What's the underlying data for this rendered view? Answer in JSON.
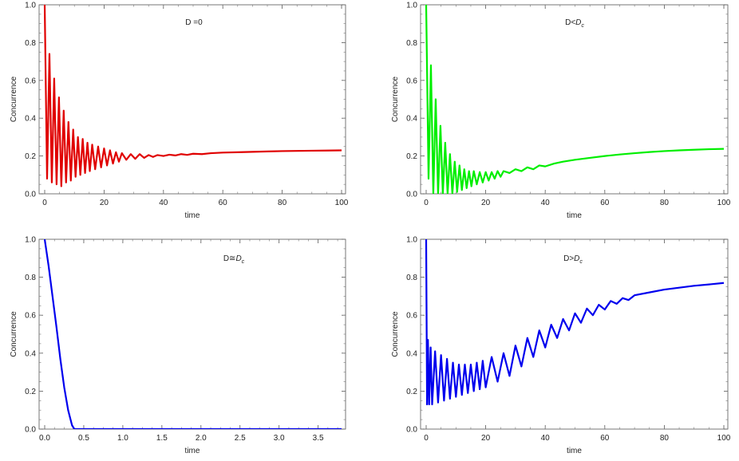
{
  "chart_data": [
    {
      "type": "line",
      "annotation_html": "D =0",
      "annotation": "D =0",
      "xlabel": "time",
      "ylabel": "Concurrence",
      "xlim": [
        0,
        100
      ],
      "ylim": [
        0,
        1.0
      ],
      "xticks": [
        "0",
        "20",
        "40",
        "60",
        "80",
        "100"
      ],
      "yticks": [
        "0.0",
        "0.2",
        "0.4",
        "0.6",
        "0.8",
        "1.0"
      ],
      "color": "#e00000",
      "series": [
        {
          "x": [
            0,
            0.8,
            1.6,
            2.4,
            3.2,
            4.0,
            4.8,
            5.6,
            6.4,
            7.2,
            8.0,
            8.8,
            9.6,
            10.4,
            11.2,
            12.0,
            12.8,
            13.6,
            14.4,
            15.2,
            16.0,
            17.0,
            18.0,
            19.0,
            20.0,
            21.0,
            22.0,
            23.0,
            24.0,
            25.0,
            26.0,
            27.5,
            29.0,
            30.5,
            32.0,
            33.5,
            35.0,
            36.5,
            38.0,
            40.0,
            42.0,
            44.0,
            46.0,
            48.0,
            50.0,
            53.0,
            56.0,
            60.0,
            65.0,
            70.0,
            75.0,
            80.0,
            85.0,
            90.0,
            95.0,
            100.0
          ],
          "y": [
            1.0,
            0.08,
            0.74,
            0.06,
            0.61,
            0.05,
            0.51,
            0.04,
            0.44,
            0.06,
            0.38,
            0.07,
            0.34,
            0.09,
            0.3,
            0.1,
            0.29,
            0.11,
            0.27,
            0.12,
            0.26,
            0.13,
            0.25,
            0.14,
            0.24,
            0.15,
            0.23,
            0.16,
            0.22,
            0.17,
            0.215,
            0.18,
            0.21,
            0.185,
            0.21,
            0.19,
            0.205,
            0.195,
            0.205,
            0.2,
            0.207,
            0.203,
            0.21,
            0.206,
            0.212,
            0.21,
            0.215,
            0.218,
            0.22,
            0.222,
            0.224,
            0.226,
            0.227,
            0.228,
            0.229,
            0.23
          ]
        }
      ]
    },
    {
      "type": "line",
      "annotation": "D<Dc",
      "annotation_main": "D<",
      "annotation_sub": "c",
      "annotation_italic": "D",
      "xlabel": "time",
      "ylabel": "Concurrence",
      "xlim": [
        0,
        100
      ],
      "ylim": [
        0,
        1.0
      ],
      "xticks": [
        "0",
        "20",
        "40",
        "60",
        "80",
        "100"
      ],
      "yticks": [
        "0.0",
        "0.2",
        "0.4",
        "0.6",
        "0.8",
        "1.0"
      ],
      "color": "#00ee00",
      "series": [
        {
          "x": [
            0,
            0.8,
            1.6,
            2.4,
            3.2,
            4.0,
            4.8,
            5.6,
            6.4,
            7.2,
            8.0,
            8.8,
            9.6,
            10.4,
            11.2,
            12.0,
            12.8,
            13.6,
            14.4,
            15.2,
            16.0,
            17.0,
            18.0,
            19.0,
            20.0,
            21.0,
            22.0,
            23.0,
            24.0,
            25.0,
            26.0,
            28.0,
            30.0,
            32.0,
            34.0,
            36.0,
            38.0,
            40.0,
            43.0,
            46.0,
            50.0,
            55.0,
            60.0,
            65.0,
            70.0,
            75.0,
            80.0,
            85.0,
            90.0,
            95.0,
            100.0
          ],
          "y": [
            1.0,
            0.08,
            0.68,
            0.0,
            0.5,
            0.0,
            0.36,
            0.0,
            0.27,
            0.0,
            0.21,
            0.0,
            0.17,
            0.01,
            0.15,
            0.02,
            0.13,
            0.03,
            0.12,
            0.04,
            0.12,
            0.05,
            0.115,
            0.06,
            0.115,
            0.07,
            0.115,
            0.08,
            0.12,
            0.09,
            0.12,
            0.11,
            0.13,
            0.12,
            0.14,
            0.13,
            0.15,
            0.145,
            0.16,
            0.17,
            0.18,
            0.19,
            0.2,
            0.208,
            0.215,
            0.221,
            0.226,
            0.23,
            0.233,
            0.236,
            0.238
          ]
        }
      ]
    },
    {
      "type": "line",
      "annotation": "D≅Dc",
      "annotation_main": "D≅",
      "annotation_sub": "c",
      "annotation_italic": "D",
      "xlabel": "time",
      "ylabel": "Concurrence",
      "xlim": [
        0,
        3.8
      ],
      "ylim": [
        0,
        1.0
      ],
      "xtick_values": [
        0,
        0.5,
        1.0,
        1.5,
        2.0,
        2.5,
        3.0,
        3.5
      ],
      "xticks": [
        "0.0",
        "0.5",
        "1.0",
        "1.5",
        "2.0",
        "2.5",
        "3.0",
        "3.5"
      ],
      "yticks": [
        "0.0",
        "0.2",
        "0.4",
        "0.6",
        "0.8",
        "1.0"
      ],
      "color": "#0000ee",
      "series": [
        {
          "x": [
            0,
            0.05,
            0.1,
            0.15,
            0.2,
            0.25,
            0.3,
            0.35,
            0.38,
            0.4,
            1.0,
            2.0,
            3.0,
            3.8
          ],
          "y": [
            1.0,
            0.86,
            0.7,
            0.54,
            0.37,
            0.22,
            0.1,
            0.02,
            0.0,
            0.0,
            0.0,
            0.0,
            0.0,
            0.0
          ]
        }
      ]
    },
    {
      "type": "line",
      "annotation": "D>Dc",
      "annotation_main": "D>",
      "annotation_sub": "c",
      "annotation_italic": "D",
      "xlabel": "time",
      "ylabel": "Concurrence",
      "xlim": [
        0,
        100
      ],
      "ylim": [
        0,
        1.0
      ],
      "xticks": [
        "0",
        "20",
        "40",
        "60",
        "80",
        "100"
      ],
      "yticks": [
        "0.0",
        "0.2",
        "0.4",
        "0.6",
        "0.8",
        "1.0"
      ],
      "color": "#0000ee",
      "series": [
        {
          "x": [
            0,
            0.3,
            0.6,
            1.0,
            1.5,
            2,
            3,
            4,
            5,
            6,
            7,
            8,
            9,
            10,
            11,
            12,
            13,
            14,
            15,
            16,
            17,
            18,
            19,
            20,
            22,
            24,
            26,
            28,
            30,
            32,
            34,
            36,
            38,
            40,
            42,
            44,
            46,
            48,
            50,
            52,
            54,
            56,
            58,
            60,
            62,
            64,
            66,
            68,
            70,
            75,
            80,
            85,
            90,
            95,
            100
          ],
          "y": [
            1.0,
            0.13,
            0.47,
            0.13,
            0.43,
            0.13,
            0.41,
            0.14,
            0.39,
            0.15,
            0.37,
            0.16,
            0.35,
            0.17,
            0.34,
            0.18,
            0.34,
            0.19,
            0.34,
            0.2,
            0.35,
            0.21,
            0.36,
            0.22,
            0.38,
            0.25,
            0.4,
            0.28,
            0.44,
            0.33,
            0.48,
            0.38,
            0.52,
            0.43,
            0.55,
            0.48,
            0.58,
            0.52,
            0.61,
            0.56,
            0.635,
            0.6,
            0.655,
            0.63,
            0.675,
            0.66,
            0.69,
            0.68,
            0.705,
            0.72,
            0.735,
            0.745,
            0.755,
            0.762,
            0.77
          ]
        }
      ]
    }
  ]
}
